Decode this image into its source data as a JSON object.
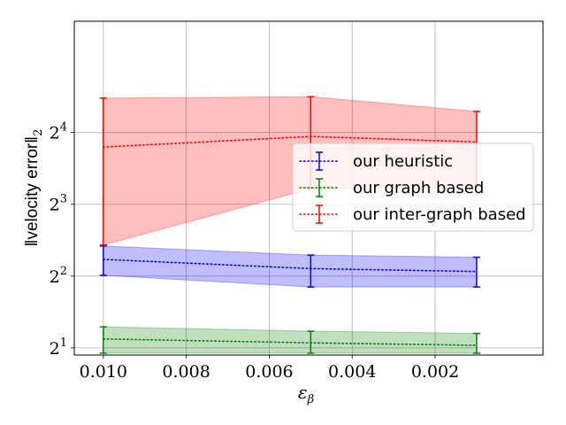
{
  "chart_data": {
    "type": "line",
    "title": "",
    "xlabel": "ε",
    "xlabel_sub": "β",
    "ylabel": "‖velocity error‖",
    "ylabel_sub": "2",
    "x_reversed": true,
    "xlim": [
      0.0107,
      -0.0006
    ],
    "x_ticks": [
      0.01,
      0.008,
      0.006,
      0.004,
      0.002
    ],
    "x_tick_labels": [
      "0.010",
      "0.008",
      "0.006",
      "0.004",
      "0.002"
    ],
    "y_scale": "log2",
    "ylim_exp": [
      0.9,
      5.55
    ],
    "y_ticks_exp": [
      1,
      2,
      3,
      4
    ],
    "y_tick_base": "2",
    "grid": true,
    "legend_position": "center-right",
    "series": [
      {
        "name": "our heuristic",
        "color": "#0000ff",
        "x": [
          0.01,
          0.005,
          0.001
        ],
        "y": [
          4.7,
          4.3,
          4.18
        ],
        "lower": [
          4.03,
          3.6,
          3.6
        ],
        "upper": [
          5.35,
          4.9,
          4.8
        ]
      },
      {
        "name": "our graph based",
        "color": "#008000",
        "x": [
          0.01,
          0.005,
          0.001
        ],
        "y": [
          2.18,
          2.1,
          2.05
        ],
        "lower": [
          1.9,
          1.9,
          1.9
        ],
        "upper": [
          2.45,
          2.35,
          2.3
        ]
      },
      {
        "name": "our inter-graph based",
        "color": "#ff0000",
        "x": [
          0.01,
          0.005,
          0.001
        ],
        "y": [
          13.9,
          15.4,
          14.6
        ],
        "lower": [
          5.4,
          9.3,
          9.5
        ],
        "upper": [
          22.3,
          22.6,
          19.6
        ]
      }
    ]
  }
}
